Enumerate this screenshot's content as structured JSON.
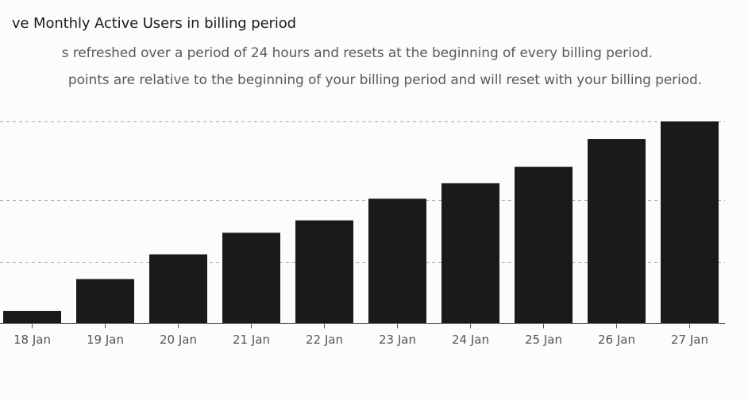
{
  "header": {
    "title": "ve Monthly Active Users in billing period",
    "description_1": "s refreshed over a period of 24 hours and resets at the beginning of every billing period.",
    "description_2": "points are relative to the beginning of your billing period and will reset with your billing period."
  },
  "colors": {
    "bar": "#1a1a1a",
    "gridline": "#a9a9a9",
    "baseline": "#555555",
    "tick_text": "#555555",
    "background": "#fcfcfc"
  },
  "chart_data": {
    "type": "bar",
    "categories": [
      "18 Jan",
      "19 Jan",
      "20 Jan",
      "21 Jan",
      "22 Jan",
      "23 Jan",
      "24 Jan",
      "25 Jan",
      "26 Jan",
      "27 Jan"
    ],
    "values": [
      6,
      21.5,
      33.5,
      44,
      50,
      60.5,
      68,
      76,
      89.5,
      98
    ],
    "ylim": [
      0,
      98
    ],
    "gridline_values": [
      30,
      60,
      98
    ],
    "grid": true,
    "legend": "none",
    "title": "",
    "xlabel": "",
    "ylabel": ""
  }
}
